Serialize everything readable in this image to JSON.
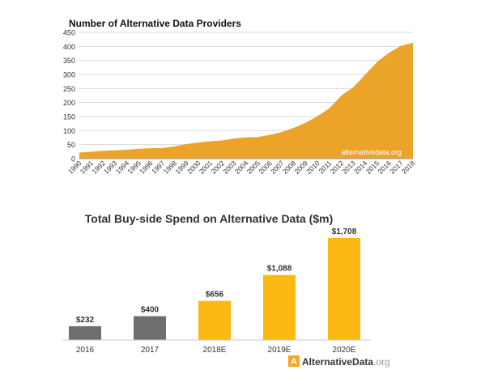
{
  "chart_data": [
    {
      "type": "area",
      "title": "Number of Alternative Data Providers",
      "xlabel": "",
      "ylabel": "",
      "x": [
        "1990",
        "1991",
        "1992",
        "1993",
        "1994",
        "1995",
        "1996",
        "1997",
        "1998",
        "1999",
        "2000",
        "2001",
        "2002",
        "2003",
        "2004",
        "2005",
        "2006",
        "2007",
        "2008",
        "2009",
        "2010",
        "2011",
        "2012",
        "2013",
        "2014",
        "2015",
        "2016",
        "2017",
        "2018"
      ],
      "values": [
        22,
        25,
        28,
        30,
        32,
        35,
        37,
        38,
        44,
        52,
        58,
        62,
        65,
        72,
        76,
        77,
        85,
        95,
        110,
        128,
        152,
        180,
        225,
        255,
        300,
        345,
        378,
        402,
        413
      ],
      "ylim": [
        0,
        450
      ],
      "yticks": [
        "0",
        "50",
        "100",
        "150",
        "200",
        "250",
        "300",
        "350",
        "400",
        "450"
      ],
      "grid": true,
      "color": "#eba32a",
      "watermark": "alternativedata.org"
    },
    {
      "type": "bar",
      "title": "Total Buy-side Spend on Alternative Data ($m)",
      "categories": [
        "2016",
        "2017",
        "2018E",
        "2019E",
        "2020E"
      ],
      "values": [
        232,
        400,
        656,
        1088,
        1708
      ],
      "labels": [
        "$232",
        "$400",
        "$656",
        "$1,088",
        "$1,708"
      ],
      "bar_colors": [
        "#6e6e6e",
        "#6e6e6e",
        "#fdb913",
        "#fdb913",
        "#fdb913"
      ],
      "ylim": [
        0,
        1708
      ],
      "grid": false,
      "logo": {
        "letter": "A",
        "bold_text": "AlternativeData",
        "light_text": ".org",
        "color": "#f5a623"
      }
    }
  ]
}
